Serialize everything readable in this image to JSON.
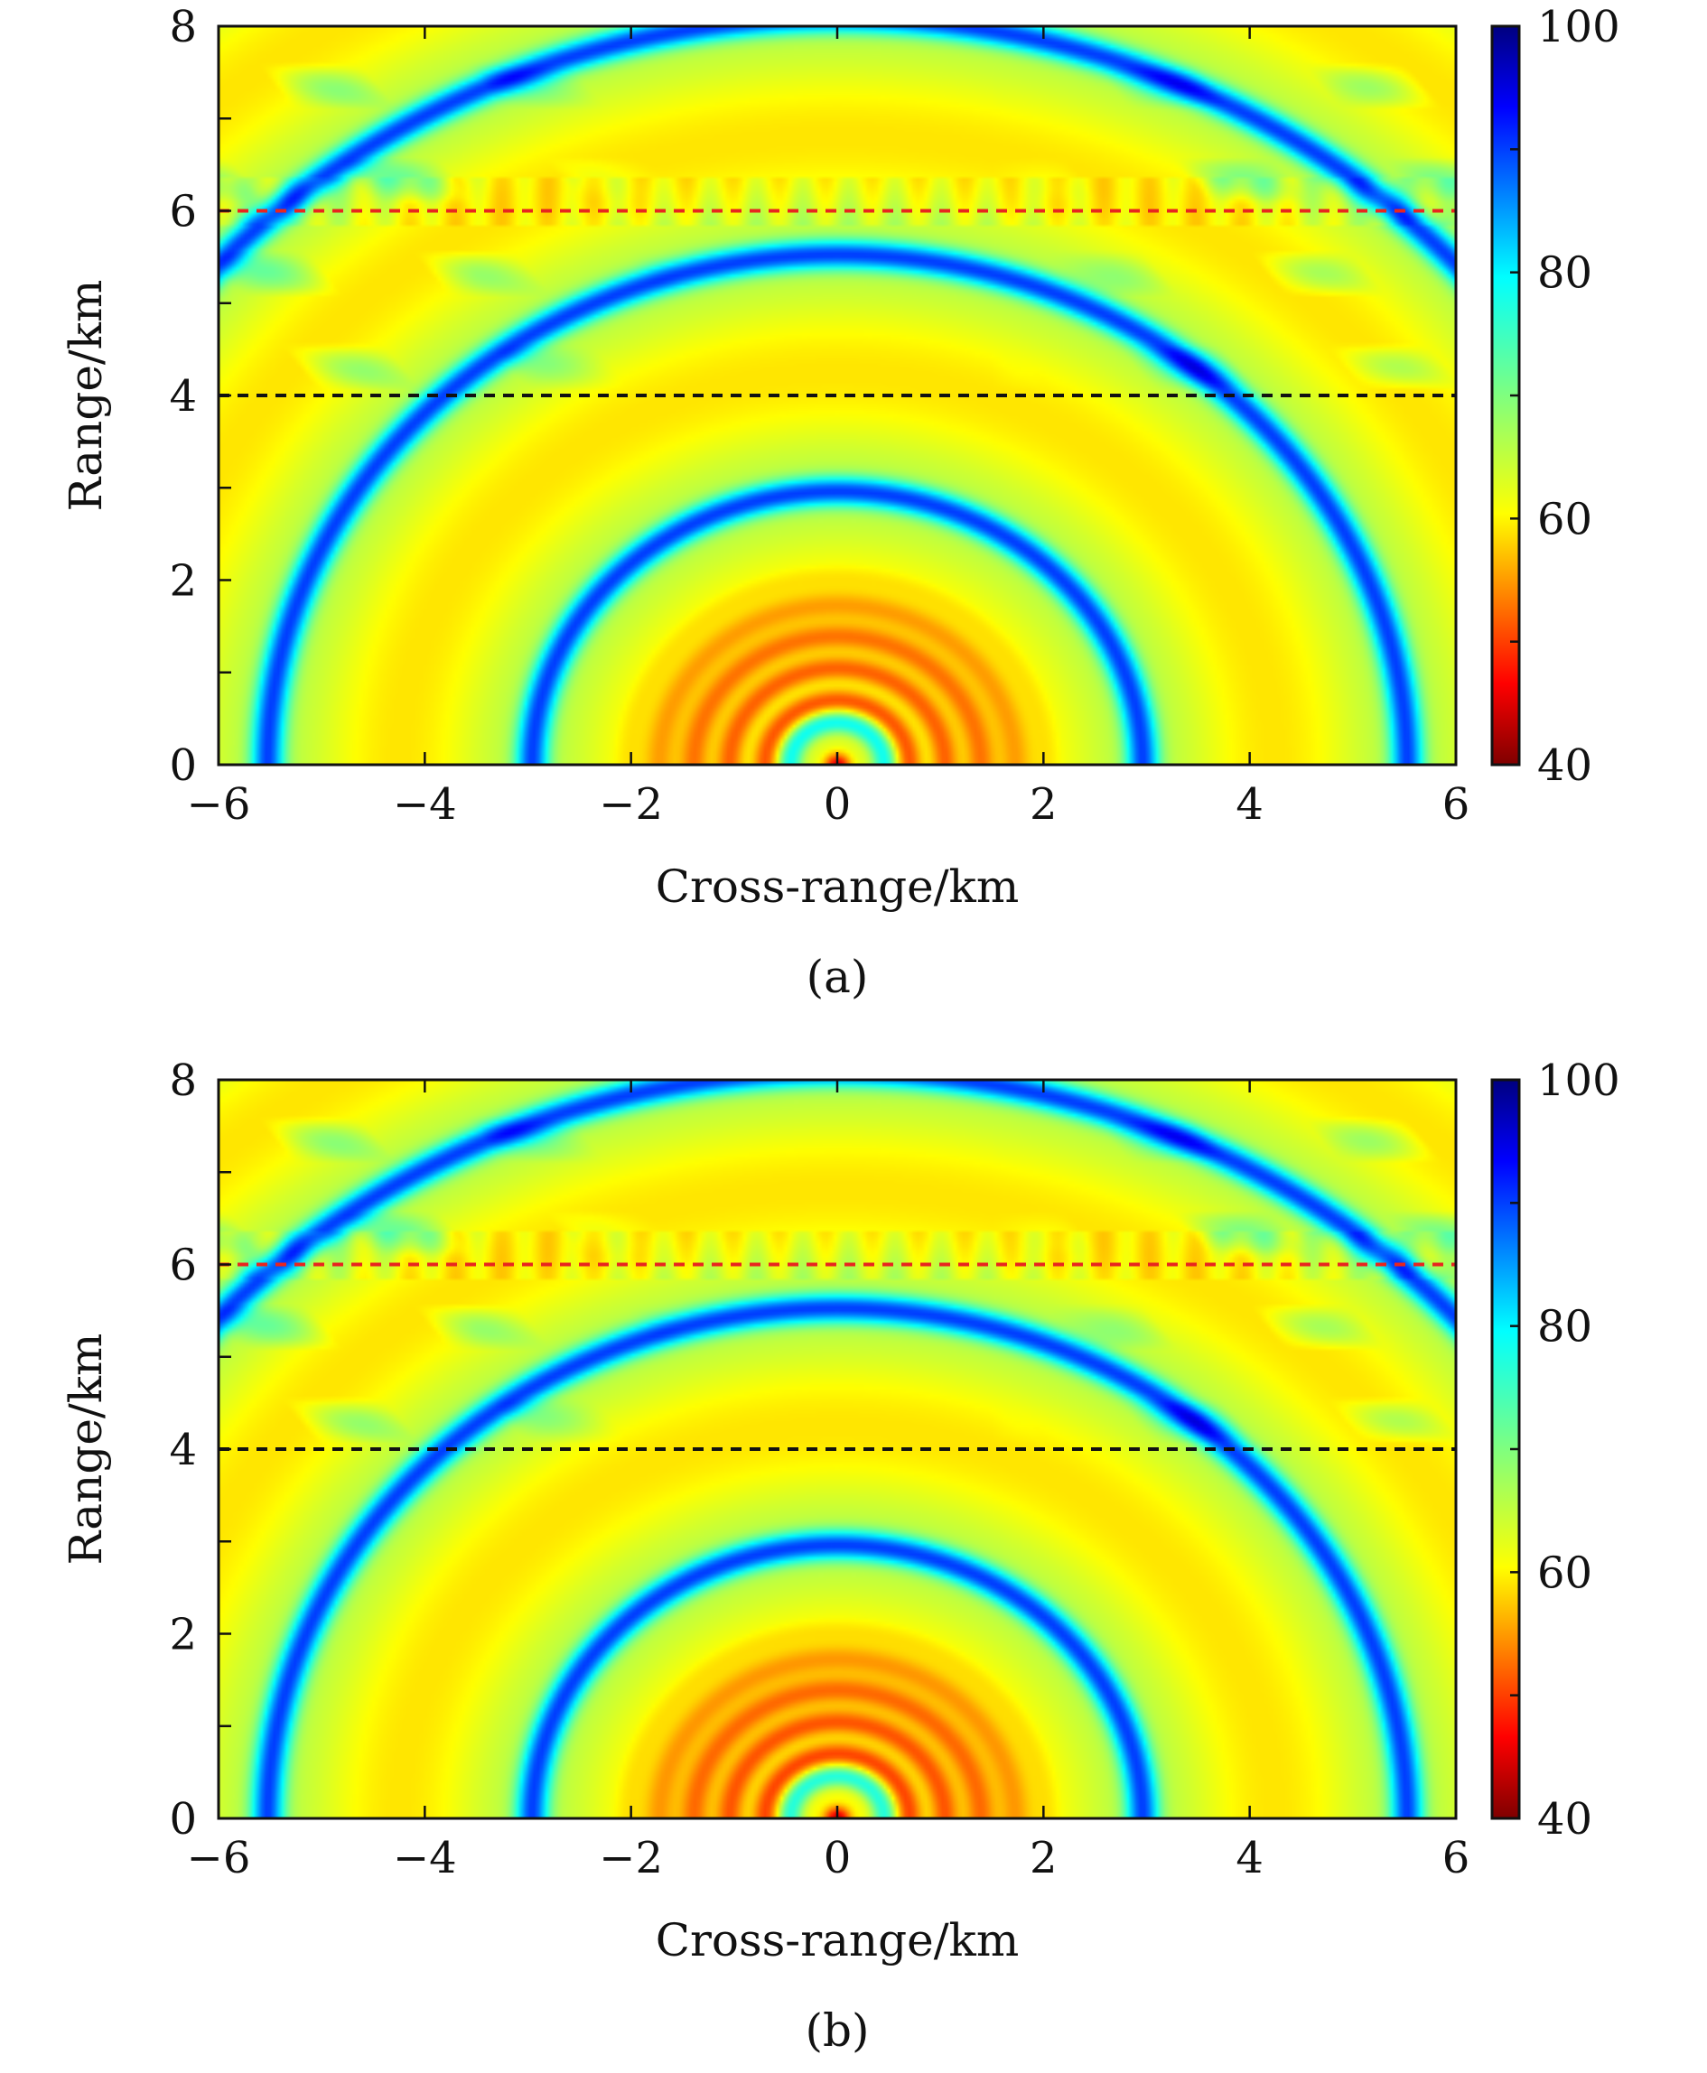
{
  "chart_data": [
    {
      "type": "heatmap",
      "panel_label": "(a)",
      "xlabel": "Cross-range/km",
      "ylabel": "Range/km",
      "xlim": [
        -6,
        6
      ],
      "ylim": [
        0,
        8
      ],
      "x_ticks": [
        "−6",
        "−4",
        "−2",
        "0",
        "2",
        "4",
        "6"
      ],
      "x_tick_values": [
        -6,
        -4,
        -2,
        0,
        2,
        4,
        6
      ],
      "y_ticks": [
        "0",
        "2",
        "4",
        "6",
        "8"
      ],
      "y_tick_values": [
        0,
        2,
        4,
        6,
        8
      ],
      "colorbar": {
        "range": [
          40,
          100
        ],
        "tick_labels": [
          "40",
          "60",
          "80",
          "100"
        ],
        "tick_values": [
          40,
          60,
          80,
          100
        ],
        "colormap": "jet (reversed: 40 dark red, 100 dark blue)"
      },
      "lines": [
        {
          "y": 6,
          "style": "dashed",
          "color": "#e8251f"
        },
        {
          "y": 4,
          "style": "dashed",
          "color": "#111111"
        }
      ],
      "pattern": "concentric semicircular interference fringes centred at cross-range 0, range 0; low values (red) near the source, 60–80 elsewhere"
    },
    {
      "type": "heatmap",
      "panel_label": "(b)",
      "xlabel": "Cross-range/km",
      "ylabel": "Range/km",
      "xlim": [
        -6,
        6
      ],
      "ylim": [
        0,
        8
      ],
      "x_ticks": [
        "−6",
        "−4",
        "−2",
        "0",
        "2",
        "4",
        "6"
      ],
      "x_tick_values": [
        -6,
        -4,
        -2,
        0,
        2,
        4,
        6
      ],
      "y_ticks": [
        "0",
        "2",
        "4",
        "6",
        "8"
      ],
      "y_tick_values": [
        0,
        2,
        4,
        6,
        8
      ],
      "colorbar": {
        "range": [
          40,
          100
        ],
        "tick_labels": [
          "40",
          "60",
          "80",
          "100"
        ],
        "tick_values": [
          40,
          60,
          80,
          100
        ],
        "colormap": "jet (reversed: 40 dark red, 100 dark blue)"
      },
      "lines": [
        {
          "y": 6,
          "style": "dashed",
          "color": "#e8251f"
        },
        {
          "y": 4,
          "style": "dashed",
          "color": "#111111"
        }
      ],
      "pattern": "concentric semicircular interference fringes centred at cross-range 0, range 0; low values (red) near the source, 60–80 elsewhere"
    }
  ]
}
